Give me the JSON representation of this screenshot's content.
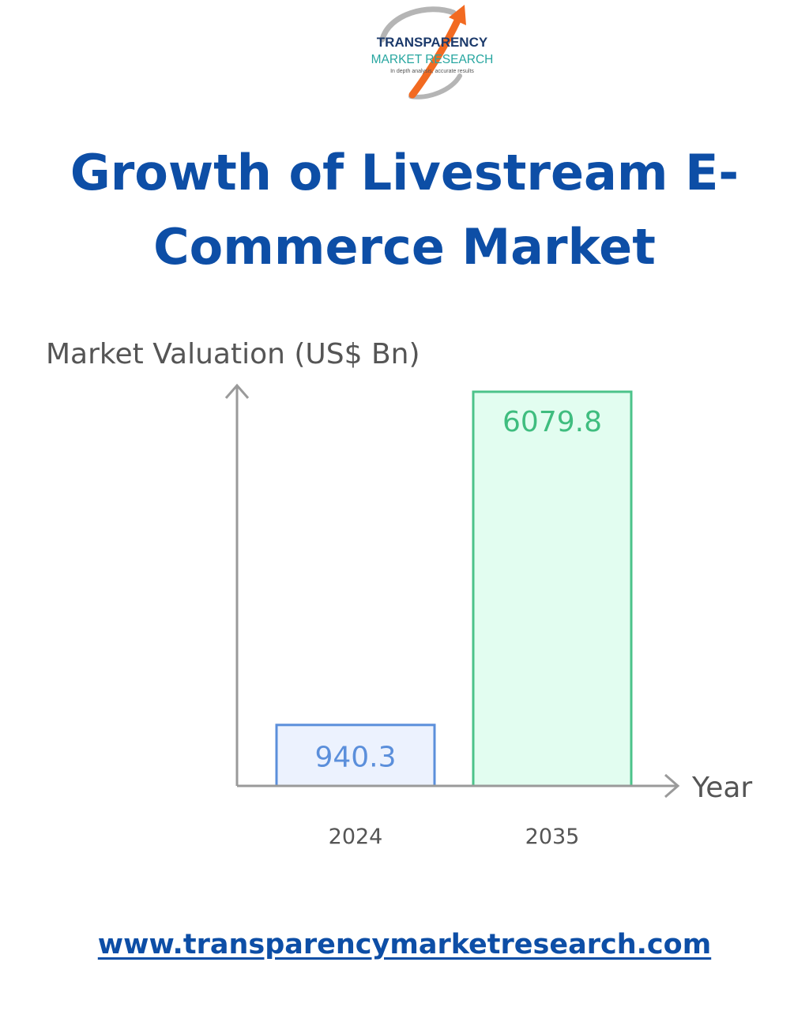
{
  "logo": {
    "line1": "TRANSPARENCY",
    "line2": "MARKET RESEARCH",
    "tagline": "In depth analysis, accurate results",
    "colors": {
      "navy": "#1c3a6b",
      "teal": "#27a6a0",
      "orange": "#f26a21",
      "gray": "#b5b5b5"
    },
    "icon": "arrow-swoosh-icon"
  },
  "title": {
    "line1": "Growth of Livestream E-",
    "line2": "Commerce Market"
  },
  "chart_data": {
    "type": "bar",
    "ylabel": "Market Valuation (US$ Bn)",
    "xlabel": "Year",
    "categories": [
      "2024",
      "2035"
    ],
    "values": [
      940.3,
      6079.8
    ],
    "data_labels": [
      "940.3",
      "6079.8"
    ],
    "bar_fills": [
      "#ecf2fe",
      "#e2fdf0"
    ],
    "bar_strokes": [
      "#5b8fdb",
      "#4cc38a"
    ],
    "label_colors": [
      "#5b8fdb",
      "#3fbd7f"
    ],
    "axis_color": "#9a9a9a",
    "grid": false,
    "legend": "none",
    "ylim": [
      0,
      6079.8
    ]
  },
  "footer": {
    "url": "www.transparencymarketresearch.com"
  }
}
